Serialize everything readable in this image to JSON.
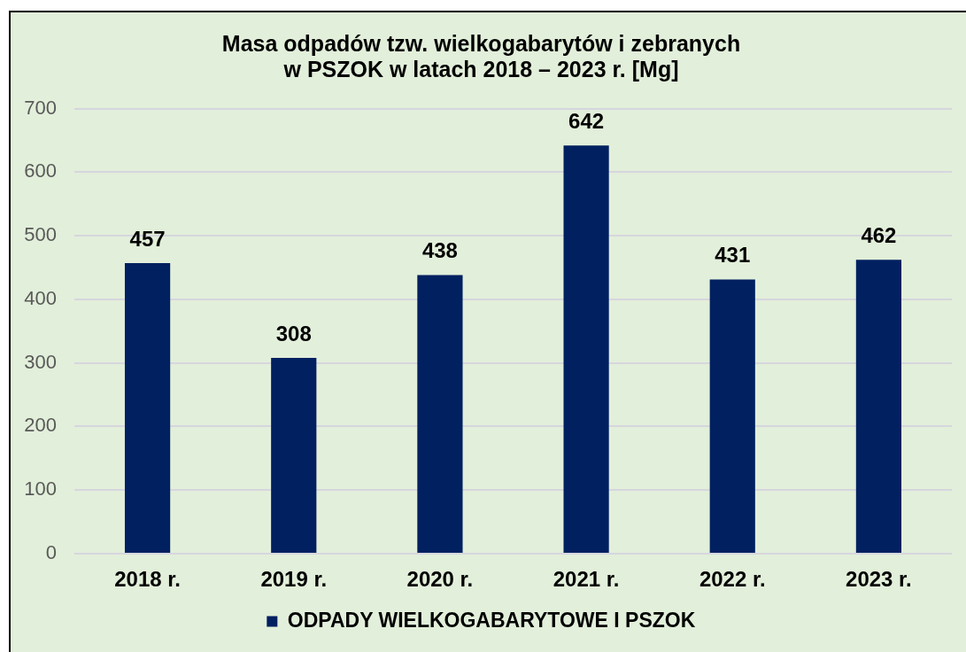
{
  "chart_data": {
    "type": "bar",
    "title": "Masa odpadów tzw. wielkogabarytów i zebranych\nw PSZOK w latach 2018 – 2023 r. [Mg]",
    "categories": [
      "2018 r.",
      "2019 r.",
      "2020 r.",
      "2021 r.",
      "2022 r.",
      "2023 r."
    ],
    "series": [
      {
        "name": "ODPADY WIELKOGABARYTOWE I PSZOK",
        "color": "#002060",
        "values": [
          457,
          308,
          438,
          642,
          431,
          462
        ]
      }
    ],
    "ylim": [
      0,
      700
    ],
    "yticks": [
      0,
      100,
      200,
      300,
      400,
      500,
      600,
      700
    ],
    "grid": "y",
    "legend": "bottom",
    "data_labels": true
  }
}
